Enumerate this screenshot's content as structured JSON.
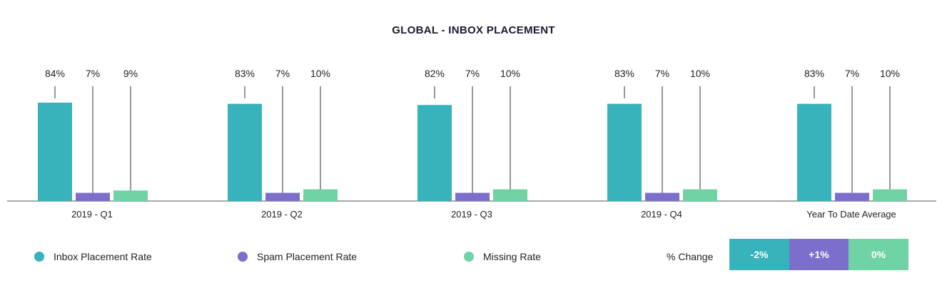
{
  "chart_data": {
    "type": "bar",
    "title": "GLOBAL - INBOX PLACEMENT",
    "categories": [
      "2019 - Q1",
      "2019 - Q2",
      "2019 - Q3",
      "2019 - Q4",
      "Year To Date Average"
    ],
    "series": [
      {
        "name": "Inbox Placement Rate",
        "color": "#38b2bb",
        "values": [
          84,
          83,
          82,
          83,
          83
        ],
        "labels": [
          "84%",
          "83%",
          "82%",
          "83%",
          "83%"
        ]
      },
      {
        "name": "Spam Placement Rate",
        "color": "#7b6fcb",
        "values": [
          7,
          7,
          7,
          7,
          7
        ],
        "labels": [
          "7%",
          "7%",
          "7%",
          "7%",
          "7%"
        ]
      },
      {
        "name": "Missing Rate",
        "color": "#6fd3a6",
        "values": [
          9,
          10,
          10,
          10,
          10
        ],
        "labels": [
          "9%",
          "10%",
          "10%",
          "10%",
          "10%"
        ]
      }
    ],
    "ylim": [
      0,
      100
    ],
    "grid": false,
    "legend": "bottom-left"
  },
  "percent_change": {
    "label": "% Change",
    "items": [
      {
        "value": "-2%",
        "color": "#38b2bb"
      },
      {
        "value": "+1%",
        "color": "#7b6fcb"
      },
      {
        "value": "0%",
        "color": "#6fd3a6"
      }
    ]
  }
}
